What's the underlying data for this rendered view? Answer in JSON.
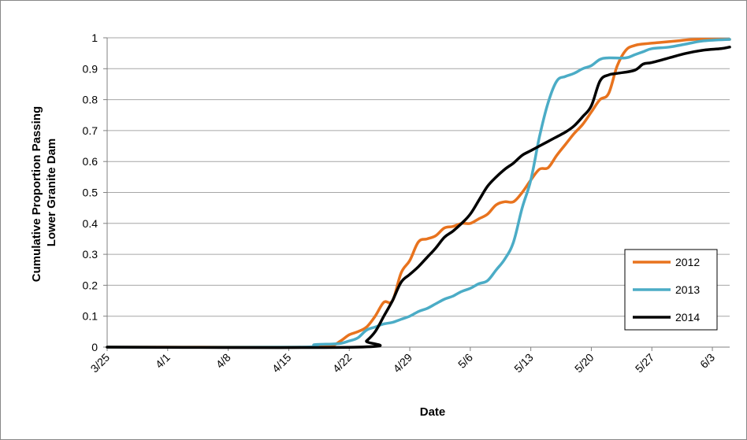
{
  "chart_data": {
    "type": "line",
    "title": "",
    "xlabel": "Date",
    "ylabel_lines": [
      "Cumulative  Proportion Passing",
      "Lower Granite Dam"
    ],
    "x_ticks": [
      "3/25",
      "4/1",
      "4/8",
      "4/15",
      "4/22",
      "4/29",
      "5/6",
      "5/13",
      "5/20",
      "5/27",
      "6/3"
    ],
    "y_ticks": [
      "0",
      "0.1",
      "0.2",
      "0.3",
      "0.4",
      "0.5",
      "0.6",
      "0.7",
      "0.8",
      "0.9",
      "1"
    ],
    "xlim": [
      "3/25",
      "6/5"
    ],
    "ylim": [
      0,
      1
    ],
    "grid": "horizontal",
    "legend_position": "bottom-right",
    "series": [
      {
        "name": "2012",
        "color": "#E8731E",
        "points": [
          [
            "3/25",
            0
          ],
          [
            "4/15",
            0
          ],
          [
            "4/18",
            0.002
          ],
          [
            "4/20",
            0.005
          ],
          [
            "4/21",
            0.02
          ],
          [
            "4/22",
            0.04
          ],
          [
            "4/23",
            0.05
          ],
          [
            "4/24",
            0.065
          ],
          [
            "4/25",
            0.1
          ],
          [
            "4/26",
            0.145
          ],
          [
            "4/27",
            0.15
          ],
          [
            "4/28",
            0.24
          ],
          [
            "4/29",
            0.28
          ],
          [
            "4/30",
            0.34
          ],
          [
            "5/1",
            0.35
          ],
          [
            "5/2",
            0.36
          ],
          [
            "5/3",
            0.385
          ],
          [
            "5/4",
            0.39
          ],
          [
            "5/5",
            0.4
          ],
          [
            "5/6",
            0.4
          ],
          [
            "5/7",
            0.415
          ],
          [
            "5/8",
            0.43
          ],
          [
            "5/9",
            0.46
          ],
          [
            "5/10",
            0.47
          ],
          [
            "5/11",
            0.47
          ],
          [
            "5/12",
            0.5
          ],
          [
            "5/13",
            0.54
          ],
          [
            "5/14",
            0.575
          ],
          [
            "5/15",
            0.58
          ],
          [
            "5/16",
            0.62
          ],
          [
            "5/17",
            0.655
          ],
          [
            "5/18",
            0.69
          ],
          [
            "5/19",
            0.72
          ],
          [
            "5/20",
            0.76
          ],
          [
            "5/21",
            0.8
          ],
          [
            "5/22",
            0.82
          ],
          [
            "5/23",
            0.91
          ],
          [
            "5/24",
            0.96
          ],
          [
            "5/25",
            0.975
          ],
          [
            "5/26",
            0.98
          ],
          [
            "5/28",
            0.985
          ],
          [
            "5/30",
            0.99
          ],
          [
            "6/1",
            0.995
          ],
          [
            "6/5",
            0.995
          ]
        ]
      },
      {
        "name": "2013",
        "color": "#4BACC6",
        "points": [
          [
            "3/25",
            0
          ],
          [
            "4/16",
            0
          ],
          [
            "4/18",
            0.008
          ],
          [
            "4/20",
            0.01
          ],
          [
            "4/21",
            0.012
          ],
          [
            "4/22",
            0.02
          ],
          [
            "4/23",
            0.03
          ],
          [
            "4/24",
            0.055
          ],
          [
            "4/25",
            0.065
          ],
          [
            "4/26",
            0.075
          ],
          [
            "4/27",
            0.08
          ],
          [
            "4/28",
            0.09
          ],
          [
            "4/29",
            0.1
          ],
          [
            "4/30",
            0.115
          ],
          [
            "5/1",
            0.125
          ],
          [
            "5/2",
            0.14
          ],
          [
            "5/3",
            0.155
          ],
          [
            "5/4",
            0.165
          ],
          [
            "5/5",
            0.18
          ],
          [
            "5/6",
            0.19
          ],
          [
            "5/7",
            0.205
          ],
          [
            "5/8",
            0.215
          ],
          [
            "5/9",
            0.25
          ],
          [
            "5/10",
            0.285
          ],
          [
            "5/11",
            0.34
          ],
          [
            "5/12",
            0.45
          ],
          [
            "5/13",
            0.54
          ],
          [
            "5/14",
            0.68
          ],
          [
            "5/15",
            0.79
          ],
          [
            "5/16",
            0.86
          ],
          [
            "5/17",
            0.875
          ],
          [
            "5/18",
            0.885
          ],
          [
            "5/19",
            0.9
          ],
          [
            "5/20",
            0.91
          ],
          [
            "5/21",
            0.93
          ],
          [
            "5/22",
            0.935
          ],
          [
            "5/24",
            0.935
          ],
          [
            "5/25",
            0.945
          ],
          [
            "5/26",
            0.955
          ],
          [
            "5/27",
            0.965
          ],
          [
            "5/29",
            0.97
          ],
          [
            "5/31",
            0.98
          ],
          [
            "6/2",
            0.99
          ],
          [
            "6/5",
            0.995
          ]
        ]
      },
      {
        "name": "2014",
        "color": "#000000",
        "points": [
          [
            "3/25",
            0
          ],
          [
            "4/23",
            0
          ],
          [
            "4/24",
            0.02
          ],
          [
            "4/25",
            0.05
          ],
          [
            "4/26",
            0.1
          ],
          [
            "4/27",
            0.15
          ],
          [
            "4/28",
            0.21
          ],
          [
            "4/29",
            0.235
          ],
          [
            "4/30",
            0.26
          ],
          [
            "5/1",
            0.29
          ],
          [
            "5/2",
            0.32
          ],
          [
            "5/3",
            0.355
          ],
          [
            "5/4",
            0.375
          ],
          [
            "5/5",
            0.4
          ],
          [
            "5/6",
            0.43
          ],
          [
            "5/7",
            0.475
          ],
          [
            "5/8",
            0.52
          ],
          [
            "5/9",
            0.55
          ],
          [
            "5/10",
            0.575
          ],
          [
            "5/11",
            0.595
          ],
          [
            "5/12",
            0.62
          ],
          [
            "5/13",
            0.635
          ],
          [
            "5/14",
            0.65
          ],
          [
            "5/15",
            0.665
          ],
          [
            "5/16",
            0.68
          ],
          [
            "5/17",
            0.695
          ],
          [
            "5/18",
            0.715
          ],
          [
            "5/19",
            0.745
          ],
          [
            "5/20",
            0.78
          ],
          [
            "5/21",
            0.86
          ],
          [
            "5/22",
            0.88
          ],
          [
            "5/23",
            0.885
          ],
          [
            "5/25",
            0.895
          ],
          [
            "5/26",
            0.915
          ],
          [
            "5/27",
            0.92
          ],
          [
            "5/29",
            0.935
          ],
          [
            "5/31",
            0.95
          ],
          [
            "6/2",
            0.96
          ],
          [
            "6/4",
            0.965
          ],
          [
            "6/5",
            0.97
          ]
        ]
      }
    ]
  }
}
